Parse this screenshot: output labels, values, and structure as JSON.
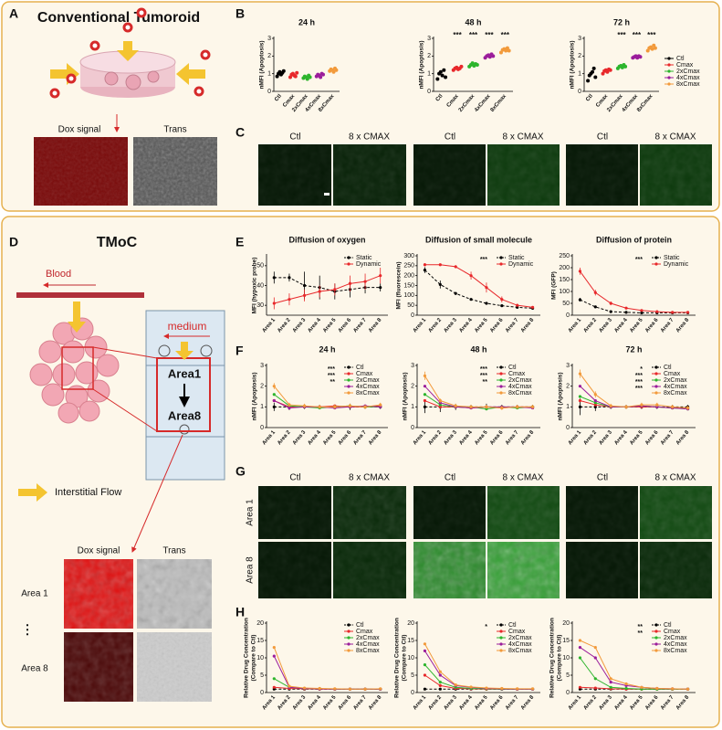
{
  "panel_labels": [
    "A",
    "B",
    "C",
    "D",
    "E",
    "F",
    "G",
    "H"
  ],
  "panel_a": {
    "title": "Conventional Tumoroid",
    "images": [
      "Dox signal",
      "Trans"
    ]
  },
  "panel_c": {
    "columns": [
      "Ctl",
      "8 x CMAX"
    ]
  },
  "panel_d": {
    "title": "TMoC",
    "blood": "Blood",
    "medium": "medium",
    "area_top": "Area1",
    "area_bottom": "Area8",
    "flow": "Interstitial Flow",
    "images": [
      "Dox signal",
      "Trans"
    ],
    "rows": [
      "Area 1",
      "Area 8"
    ],
    "ellipsis": "⋮"
  },
  "panel_g": {
    "columns": [
      "Ctl",
      "8 x CMAX"
    ],
    "rows": [
      "Area 1",
      "Area 8"
    ]
  },
  "chart_data": [
    {
      "type": "strip",
      "title": "24 h",
      "ylabel": "nMFI (Apoptosis)",
      "categories": [
        "Ctl",
        "Cmax",
        "2xCmax",
        "4xCmax",
        "8xCmax"
      ],
      "colors": [
        "#000000",
        "#e8282b",
        "#2db52d",
        "#9b1d9b",
        "#f29a3b"
      ],
      "points": [
        [
          0.85,
          1.0,
          1.1,
          0.95,
          1.05,
          1.15
        ],
        [
          0.8,
          0.95,
          1.0,
          0.9,
          0.85,
          1.05
        ],
        [
          0.75,
          0.85,
          0.8,
          0.7,
          0.9,
          0.8
        ],
        [
          0.85,
          0.95,
          0.9,
          0.8,
          1.0,
          0.95
        ],
        [
          1.15,
          1.25,
          1.2,
          1.1,
          1.3,
          1.2
        ]
      ],
      "ylim": [
        0,
        3
      ],
      "yticks": [
        0,
        1,
        2,
        3
      ],
      "legend": false
    },
    {
      "type": "strip",
      "title": "48 h",
      "ylabel": "nMFI (Apoptosis)",
      "categories": [
        "Ctl",
        "Cmax",
        "2xCmax",
        "4xCmax",
        "8xCmax"
      ],
      "colors": [
        "#000000",
        "#e8282b",
        "#2db52d",
        "#9b1d9b",
        "#f29a3b"
      ],
      "points": [
        [
          0.7,
          1.0,
          1.1,
          0.9,
          1.2,
          0.8
        ],
        [
          1.2,
          1.3,
          1.35,
          1.25,
          1.3,
          1.4
        ],
        [
          1.4,
          1.5,
          1.6,
          1.45,
          1.55,
          1.5
        ],
        [
          1.9,
          2.0,
          2.05,
          1.95,
          2.1,
          2.0
        ],
        [
          2.2,
          2.35,
          2.4,
          2.3,
          2.45,
          2.3
        ]
      ],
      "marks": [
        null,
        "***",
        "***",
        "***",
        "***"
      ],
      "ylim": [
        0,
        3
      ],
      "yticks": [
        0,
        1,
        2,
        3
      ],
      "legend": false
    },
    {
      "type": "strip",
      "title": "72 h",
      "ylabel": "nMFI (Apoptosis)",
      "categories": [
        "Ctl",
        "Cmax",
        "2xCmax",
        "4xCmax",
        "8xCmax"
      ],
      "colors": [
        "#000000",
        "#e8282b",
        "#2db52d",
        "#9b1d9b",
        "#f29a3b"
      ],
      "points": [
        [
          0.6,
          0.9,
          1.0,
          1.1,
          1.3,
          0.8
        ],
        [
          1.0,
          1.15,
          1.2,
          1.1,
          1.25,
          1.2
        ],
        [
          1.3,
          1.4,
          1.45,
          1.35,
          1.5,
          1.4
        ],
        [
          1.9,
          1.95,
          2.0,
          1.9,
          2.0,
          1.95
        ],
        [
          2.3,
          2.45,
          2.5,
          2.4,
          2.6,
          2.45
        ]
      ],
      "marks": [
        null,
        null,
        "***",
        "***",
        "***"
      ],
      "ylim": [
        0,
        3
      ],
      "yticks": [
        0,
        1,
        2,
        3
      ],
      "legend": true
    },
    {
      "type": "line",
      "title": "Diffusion of oxygen",
      "ylabel": "MFI (hypoxic probe)",
      "categories": [
        "Area 1",
        "Area 2",
        "Area 3",
        "Area 4",
        "Area 5",
        "Area 6",
        "Area 7",
        "Area 8"
      ],
      "series": [
        {
          "name": "Static",
          "color": "#000000",
          "dashed": true,
          "values": [
            44,
            44,
            40,
            39,
            37,
            38,
            39,
            39
          ],
          "errors": [
            3,
            2,
            7,
            6,
            4,
            4,
            3,
            2
          ]
        },
        {
          "name": "Dynamic",
          "color": "#e8282b",
          "values": [
            31,
            33,
            35,
            37,
            38,
            41,
            42,
            45
          ],
          "errors": [
            3,
            3,
            3,
            3,
            3,
            4,
            4,
            4
          ]
        }
      ],
      "ylim": [
        25,
        55
      ],
      "yticks": [
        30,
        40,
        50
      ],
      "legend": true
    },
    {
      "type": "line",
      "title": "Diffusion of small molecule",
      "ylabel": "MFI (fluorescein)",
      "categories": [
        "Area 1",
        "Area 2",
        "Area 3",
        "Area 4",
        "Area 5",
        "Area 6",
        "Area 7",
        "Area 8"
      ],
      "series": [
        {
          "name": "Static",
          "color": "#000000",
          "dashed": true,
          "values": [
            228,
            155,
            110,
            80,
            60,
            48,
            40,
            35
          ],
          "errors": [
            15,
            20,
            8,
            6,
            4,
            3,
            3,
            3
          ]
        },
        {
          "name": "Dynamic",
          "color": "#e8282b",
          "values": [
            255,
            255,
            245,
            200,
            140,
            80,
            50,
            40
          ],
          "errors": [
            8,
            5,
            8,
            20,
            25,
            15,
            8,
            5
          ]
        }
      ],
      "annotations": [
        "***"
      ],
      "ylim": [
        0,
        300
      ],
      "yticks": [
        0,
        50,
        100,
        150,
        200,
        250,
        300
      ],
      "legend": true
    },
    {
      "type": "line",
      "title": "Diffusion of protein",
      "ylabel": "MFI (GFP)",
      "categories": [
        "Area 1",
        "Area 2",
        "Area 3",
        "Area 4",
        "Area 5",
        "Area 6",
        "Area 7",
        "Area 8"
      ],
      "series": [
        {
          "name": "Static",
          "color": "#000000",
          "dashed": true,
          "values": [
            65,
            35,
            15,
            12,
            10,
            10,
            10,
            10
          ],
          "errors": [
            8,
            4,
            2,
            2,
            2,
            2,
            2,
            2
          ]
        },
        {
          "name": "Dynamic",
          "color": "#e8282b",
          "values": [
            185,
            95,
            50,
            30,
            20,
            15,
            12,
            12
          ],
          "errors": [
            15,
            12,
            8,
            5,
            4,
            3,
            3,
            3
          ]
        }
      ],
      "annotations": [
        "***"
      ],
      "ylim": [
        0,
        250
      ],
      "yticks": [
        0,
        50,
        100,
        150,
        200,
        250
      ],
      "legend": true
    },
    {
      "type": "line",
      "title": "24 h",
      "ylabel": "nMFI (Apoptosis)",
      "categories": [
        "Area 1",
        "Area 2",
        "Area 3",
        "Area 4",
        "Area 5",
        "Area 6",
        "Area 7",
        "Area 8"
      ],
      "series": [
        {
          "name": "Ctl",
          "color": "#000000",
          "dashed": true,
          "values": [
            1,
            1,
            1,
            1,
            1,
            1,
            1,
            1
          ],
          "errors": [
            0.2,
            0.15,
            0.1,
            0.1,
            0.1,
            0.15,
            0.1,
            0.1
          ]
        },
        {
          "name": "Cmax",
          "color": "#e8282b",
          "values": [
            1.3,
            1.0,
            1.0,
            1.0,
            1.05,
            1.0,
            1.0,
            1.05
          ]
        },
        {
          "name": "2xCmax",
          "color": "#2db52d",
          "values": [
            1.6,
            1.05,
            1.0,
            0.95,
            1.0,
            1.05,
            1.0,
            1.0
          ]
        },
        {
          "name": "4xCmax",
          "color": "#9b1d9b",
          "values": [
            1.3,
            0.95,
            1.0,
            1.0,
            0.95,
            1.0,
            1.05,
            1.0
          ]
        },
        {
          "name": "8xCmax",
          "color": "#f29a3b",
          "values": [
            2.0,
            1.1,
            1.05,
            1.0,
            1.0,
            1.05,
            1.0,
            1.1
          ],
          "errors": [
            0.15,
            0.1,
            0.1,
            0.1,
            0.1,
            0.1,
            0.1,
            0.1
          ]
        }
      ],
      "annotations": [
        "***",
        "***",
        "**"
      ],
      "ylim": [
        0,
        3
      ],
      "yticks": [
        0,
        1,
        2,
        3
      ],
      "legend": true
    },
    {
      "type": "line",
      "title": "48 h",
      "ylabel": "nMFI (Apoptosis)",
      "categories": [
        "Area 1",
        "Area 2",
        "Area 3",
        "Area 4",
        "Area 5",
        "Area 6",
        "Area 7",
        "Area 8"
      ],
      "series": [
        {
          "name": "Ctl",
          "color": "#000000",
          "dashed": true,
          "values": [
            1,
            1,
            1,
            1,
            1,
            1,
            1,
            1
          ],
          "errors": [
            0.3,
            0.25,
            0.15,
            0.1,
            0.15,
            0.1,
            0.1,
            0.1
          ]
        },
        {
          "name": "Cmax",
          "color": "#e8282b",
          "values": [
            1.3,
            1.0,
            1.0,
            0.95,
            1.0,
            0.95,
            1.0,
            1.0
          ]
        },
        {
          "name": "2xCmax",
          "color": "#2db52d",
          "values": [
            1.6,
            1.1,
            1.0,
            1.0,
            0.9,
            1.0,
            0.95,
            1.0
          ]
        },
        {
          "name": "4xCmax",
          "color": "#9b1d9b",
          "values": [
            2.0,
            1.2,
            1.0,
            0.95,
            1.0,
            1.0,
            1.0,
            0.95
          ]
        },
        {
          "name": "8xCmax",
          "color": "#f29a3b",
          "values": [
            2.5,
            1.3,
            1.05,
            1.0,
            1.0,
            0.95,
            1.0,
            1.0
          ],
          "errors": [
            0.2,
            0.1,
            0.1,
            0.1,
            0.1,
            0.1,
            0.1,
            0.1
          ]
        }
      ],
      "annotations": [
        "***",
        "***",
        "**"
      ],
      "ylim": [
        0,
        3
      ],
      "yticks": [
        0,
        1,
        2,
        3
      ],
      "legend": true
    },
    {
      "type": "line",
      "title": "72 h",
      "ylabel": "nMFI (Apoptosis)",
      "categories": [
        "Area 1",
        "Area 2",
        "Area 3",
        "Area 4",
        "Area 5",
        "Area 6",
        "Area 7",
        "Area 8"
      ],
      "series": [
        {
          "name": "Ctl",
          "color": "#000000",
          "dashed": true,
          "values": [
            1,
            1,
            1,
            1,
            1,
            1,
            1,
            1
          ],
          "errors": [
            0.4,
            0.2,
            0.1,
            0.1,
            0.1,
            0.1,
            0.1,
            0.1
          ]
        },
        {
          "name": "Cmax",
          "color": "#e8282b",
          "values": [
            1.3,
            1.1,
            1.0,
            1.0,
            1.0,
            1.0,
            0.95,
            0.95
          ]
        },
        {
          "name": "2xCmax",
          "color": "#2db52d",
          "values": [
            1.5,
            1.2,
            1.0,
            1.0,
            1.05,
            1.0,
            0.95,
            0.9
          ]
        },
        {
          "name": "4xCmax",
          "color": "#9b1d9b",
          "values": [
            2.0,
            1.3,
            1.0,
            1.0,
            1.05,
            1.0,
            0.95,
            0.9
          ]
        },
        {
          "name": "8xCmax",
          "color": "#f29a3b",
          "values": [
            2.6,
            1.6,
            1.05,
            1.0,
            1.1,
            1.1,
            1.0,
            0.95
          ],
          "errors": [
            0.2,
            0.15,
            0.1,
            0.1,
            0.1,
            0.1,
            0.1,
            0.1
          ]
        }
      ],
      "annotations": [
        "*",
        "***",
        "***",
        "***"
      ],
      "ylim": [
        0,
        3
      ],
      "yticks": [
        0,
        1,
        2,
        3
      ],
      "legend": true
    },
    {
      "type": "line",
      "ylabel": [
        "Relative Drug Concentration",
        "(Compare to Ctl)"
      ],
      "categories": [
        "Area 1",
        "Area 2",
        "Area 3",
        "Area 4",
        "Area 5",
        "Area 6",
        "Area 7",
        "Area 8"
      ],
      "series": [
        {
          "name": "Ctl",
          "color": "#000000",
          "dashed": true,
          "values": [
            1,
            1,
            1,
            1,
            1,
            1,
            1,
            1
          ]
        },
        {
          "name": "Cmax",
          "color": "#e8282b",
          "values": [
            1.5,
            1.2,
            1.1,
            1.0,
            1.0,
            1.0,
            1.0,
            1.0
          ]
        },
        {
          "name": "2xCmax",
          "color": "#2db52d",
          "values": [
            4,
            1.5,
            1.2,
            1.1,
            1.0,
            1.0,
            1.0,
            1.0
          ]
        },
        {
          "name": "4xCmax",
          "color": "#9b1d9b",
          "values": [
            10.5,
            1.5,
            1.2,
            1.1,
            1.0,
            1.0,
            1.0,
            1.0
          ]
        },
        {
          "name": "8xCmax",
          "color": "#f29a3b",
          "values": [
            13,
            1.8,
            1.3,
            1.2,
            1.1,
            1.0,
            1.0,
            1.1
          ]
        }
      ],
      "ylim": [
        0,
        20
      ],
      "yticks": [
        0,
        5,
        10,
        15,
        20
      ],
      "legend": true
    },
    {
      "type": "line",
      "ylabel": [
        "Relative Drug Concentration",
        "(Compare to Ctl)"
      ],
      "categories": [
        "Area 1",
        "Area 2",
        "Area 3",
        "Area 4",
        "Area 5",
        "Area 6",
        "Area 7",
        "Area 8"
      ],
      "series": [
        {
          "name": "Ctl",
          "color": "#000000",
          "dashed": true,
          "values": [
            1,
            1,
            1,
            1,
            1,
            1,
            1,
            1
          ]
        },
        {
          "name": "Cmax",
          "color": "#e8282b",
          "values": [
            5,
            2,
            1.2,
            1.1,
            1.0,
            1.0,
            1.0,
            1.0
          ]
        },
        {
          "name": "2xCmax",
          "color": "#2db52d",
          "values": [
            8,
            3,
            1.5,
            1.2,
            1.1,
            1.0,
            1.0,
            1.0
          ]
        },
        {
          "name": "4xCmax",
          "color": "#9b1d9b",
          "values": [
            12,
            5,
            2,
            1.5,
            1.2,
            1.1,
            1.0,
            1.0
          ]
        },
        {
          "name": "8xCmax",
          "color": "#f29a3b",
          "values": [
            14,
            6,
            2.2,
            1.6,
            1.3,
            1.2,
            1.1,
            1.1
          ]
        }
      ],
      "annotations": [
        "*"
      ],
      "ylim": [
        0,
        20
      ],
      "yticks": [
        0,
        5,
        10,
        15,
        20
      ],
      "legend": true
    },
    {
      "type": "line",
      "ylabel": [
        "Relative Drug Concentration",
        "(Compare to Ctl)"
      ],
      "categories": [
        "Area 1",
        "Area 2",
        "Area 3",
        "Area 4",
        "Area 5",
        "Area 6",
        "Area 7",
        "Area 8"
      ],
      "series": [
        {
          "name": "Ctl",
          "color": "#000000",
          "dashed": true,
          "values": [
            1,
            1,
            1,
            1,
            1,
            1,
            1,
            1
          ]
        },
        {
          "name": "Cmax",
          "color": "#e8282b",
          "values": [
            1.5,
            1.3,
            1.1,
            1.0,
            1.0,
            1.0,
            1.0,
            1.0
          ]
        },
        {
          "name": "2xCmax",
          "color": "#2db52d",
          "values": [
            10,
            4,
            1.5,
            1.2,
            1.0,
            1.0,
            1.0,
            1.0
          ]
        },
        {
          "name": "4xCmax",
          "color": "#9b1d9b",
          "values": [
            13,
            10,
            3,
            2,
            1.5,
            1.2,
            1.1,
            1.0
          ]
        },
        {
          "name": "8xCmax",
          "color": "#f29a3b",
          "values": [
            15,
            13,
            4,
            2.5,
            1.5,
            1.2,
            1.1,
            1.0
          ]
        }
      ],
      "annotations": [
        "**",
        "**"
      ],
      "ylim": [
        0,
        20
      ],
      "yticks": [
        0,
        5,
        10,
        15,
        20
      ],
      "legend": true
    }
  ]
}
